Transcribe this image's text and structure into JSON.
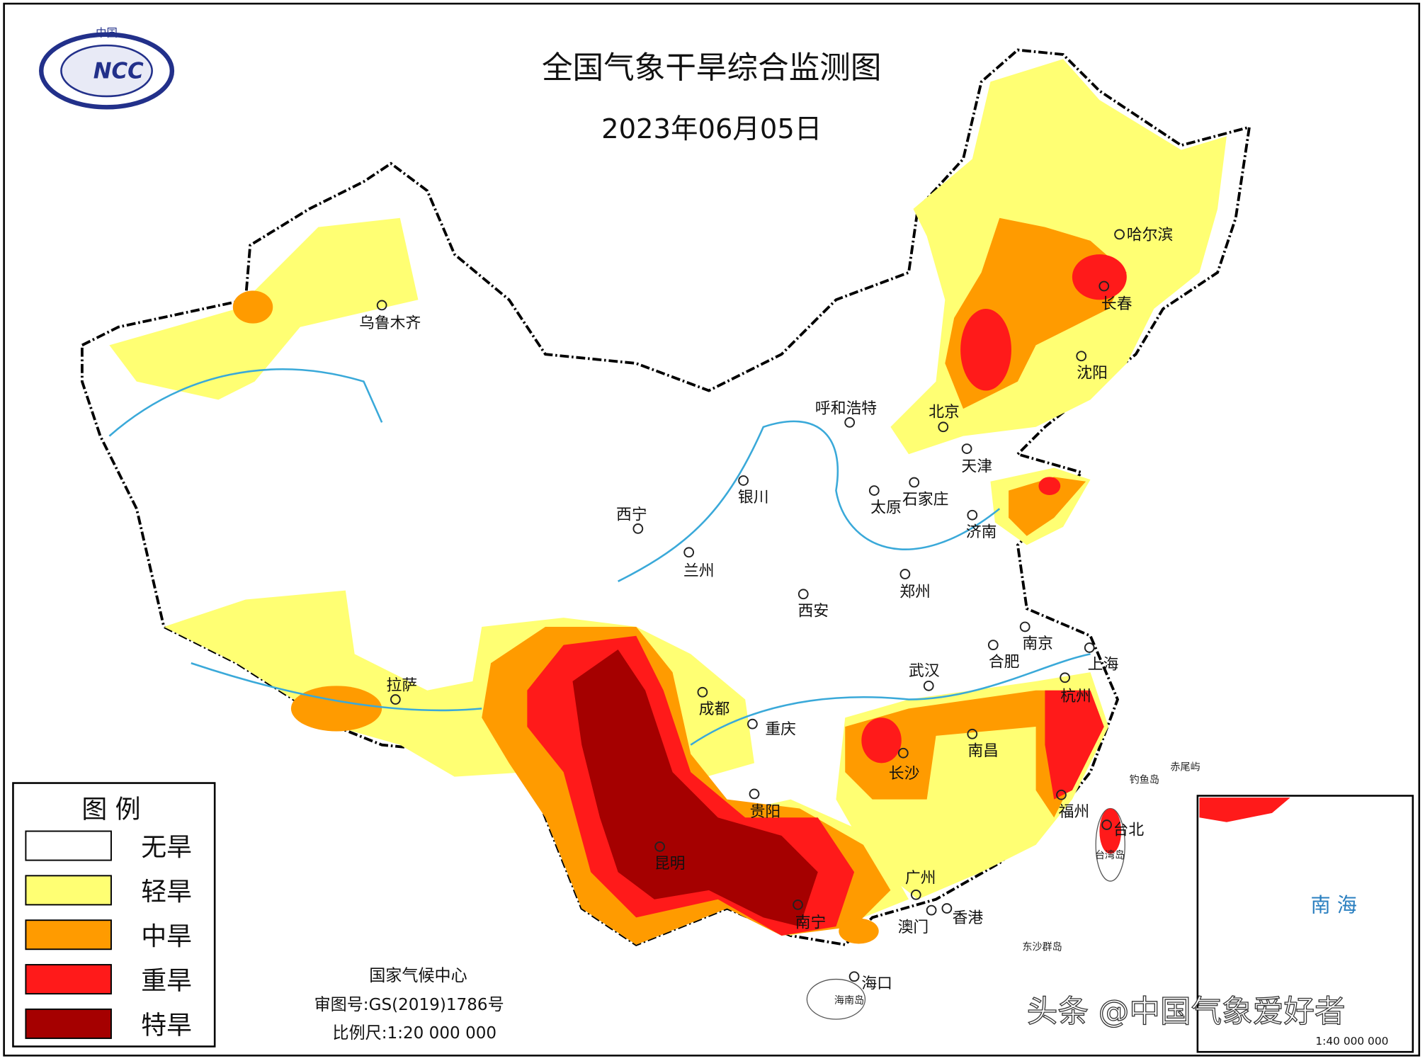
{
  "header": {
    "title": "全国气象干旱综合监测图",
    "date": "2023年06月05日",
    "logo_top": "中国",
    "logo_name": "NCC"
  },
  "legend": {
    "title": "图 例",
    "items": [
      {
        "label": "无旱",
        "color": "#ffffff"
      },
      {
        "label": "轻旱",
        "color": "#ffff73"
      },
      {
        "label": "中旱",
        "color": "#ff9b00"
      },
      {
        "label": "重旱",
        "color": "#ff1a1a"
      },
      {
        "label": "特旱",
        "color": "#a50000"
      }
    ]
  },
  "cities": [
    {
      "name": "乌鲁木齐"
    },
    {
      "name": "哈尔滨"
    },
    {
      "name": "长春"
    },
    {
      "name": "沈阳"
    },
    {
      "name": "呼和浩特"
    },
    {
      "name": "北京"
    },
    {
      "name": "天津"
    },
    {
      "name": "石家庄"
    },
    {
      "name": "太原"
    },
    {
      "name": "济南"
    },
    {
      "name": "银川"
    },
    {
      "name": "西宁"
    },
    {
      "name": "兰州"
    },
    {
      "name": "郑州"
    },
    {
      "name": "西安"
    },
    {
      "name": "南京"
    },
    {
      "name": "合肥"
    },
    {
      "name": "上海"
    },
    {
      "name": "武汉"
    },
    {
      "name": "拉萨"
    },
    {
      "name": "成都"
    },
    {
      "name": "重庆"
    },
    {
      "name": "杭州"
    },
    {
      "name": "长沙"
    },
    {
      "name": "南昌"
    },
    {
      "name": "贵阳"
    },
    {
      "name": "福州"
    },
    {
      "name": "台北"
    },
    {
      "name": "昆明"
    },
    {
      "name": "广州"
    },
    {
      "name": "南宁"
    },
    {
      "name": "澳门"
    },
    {
      "name": "香港"
    },
    {
      "name": "海口"
    }
  ],
  "places": [
    {
      "name": "钓鱼岛"
    },
    {
      "name": "赤尾屿"
    },
    {
      "name": "台湾岛"
    },
    {
      "name": "东沙群岛"
    },
    {
      "name": "海南岛"
    }
  ],
  "footer": {
    "org": "国家气候中心",
    "approval": "审图号:GS(2019)1786号",
    "scale": "比例尺:1:20 000 000"
  },
  "inset": {
    "label": "南 海",
    "scale": "1:40 000 000"
  },
  "watermark": "头条 @中国气象爱好者"
}
